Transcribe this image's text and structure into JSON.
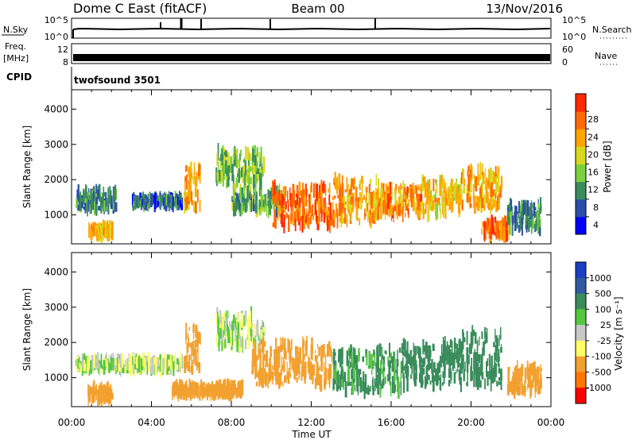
{
  "header": {
    "station": "Dome C East (fitACF)",
    "beam": "Beam 00",
    "date": "13/Nov/2016"
  },
  "noise_panel": {
    "left_label": "N.Sky",
    "left_ticks": [
      "10^5",
      "10^0"
    ],
    "right_label": "N.Search",
    "right_ticks": [
      "10^5",
      "10^0"
    ]
  },
  "freq_panel": {
    "left_label_1": "Freq.",
    "left_label_2": "[MHz]",
    "left_ticks": [
      "12",
      "8"
    ],
    "right_label": "Nave",
    "right_ticks": [
      "60",
      "0"
    ]
  },
  "cpid": {
    "label": "CPID",
    "value": "twofsound 3501"
  },
  "colors": {
    "power": [
      "#0000ff",
      "#2b4ea8",
      "#3a8c5c",
      "#7bd13d",
      "#d8d81f",
      "#ffa500",
      "#ff6a00",
      "#ff2a00"
    ],
    "velocity": [
      "#ff0000",
      "#ff7700",
      "#f2a130",
      "#ffff66",
      "#c8c8c8",
      "#55c840",
      "#3a8c5c",
      "#2f5aa0",
      "#1a3fc4"
    ]
  },
  "chart_data": [
    {
      "type": "heatmap",
      "panel": "power",
      "ylabel": "Slant Range [km]",
      "ylim": [
        180,
        4550
      ],
      "yticks": [
        "1000",
        "2000",
        "3000",
        "4000"
      ],
      "xlim": [
        0,
        24
      ],
      "colorbar": {
        "label": "Power [dB]",
        "range": [
          0,
          32
        ],
        "ticks": [
          "4",
          "8",
          "12",
          "16",
          "20",
          "24",
          "28"
        ]
      },
      "echo_regions": [
        {
          "t0": 0.2,
          "t1": 2.2,
          "r0": 1150,
          "r1": 1650,
          "p": 10
        },
        {
          "t0": 0.8,
          "t1": 2.0,
          "r0": 450,
          "r1": 650,
          "p": 22
        },
        {
          "t0": 3.0,
          "t1": 5.5,
          "r0": 1300,
          "r1": 1450,
          "p": 8
        },
        {
          "t0": 5.6,
          "t1": 6.4,
          "r0": 1200,
          "r1": 2400,
          "p": 22
        },
        {
          "t0": 7.2,
          "t1": 9.6,
          "r0": 1900,
          "r1": 2800,
          "p": 14
        },
        {
          "t0": 8.0,
          "t1": 10.5,
          "r0": 1100,
          "r1": 1700,
          "p": 12
        },
        {
          "t0": 10.0,
          "t1": 13.0,
          "r0": 700,
          "r1": 1800,
          "p": 26
        },
        {
          "t0": 13.0,
          "t1": 15.5,
          "r0": 800,
          "r1": 2000,
          "p": 22
        },
        {
          "t0": 15.5,
          "t1": 17.5,
          "r0": 1000,
          "r1": 1800,
          "p": 24
        },
        {
          "t0": 17.5,
          "t1": 19.5,
          "r0": 1000,
          "r1": 2000,
          "p": 20
        },
        {
          "t0": 19.5,
          "t1": 21.5,
          "r0": 1200,
          "r1": 2300,
          "p": 22
        },
        {
          "t0": 20.5,
          "t1": 21.8,
          "r0": 400,
          "r1": 800,
          "p": 26
        },
        {
          "t0": 21.8,
          "t1": 23.5,
          "r0": 600,
          "r1": 1300,
          "p": 10
        }
      ]
    },
    {
      "type": "heatmap",
      "panel": "velocity",
      "ylabel": "Slant Range [km]",
      "ylim": [
        180,
        4550
      ],
      "yticks": [
        "1000",
        "2000",
        "3000",
        "4000"
      ],
      "xlabel": "Time UT",
      "xlim": [
        0,
        24
      ],
      "xticks": [
        "00:00",
        "04:00",
        "08:00",
        "12:00",
        "16:00",
        "20:00",
        "00:00"
      ],
      "colorbar": {
        "label": "Velocity [m s⁻¹]",
        "ticks": [
          "-1000",
          "-500",
          "-100",
          "-25",
          "25",
          "100",
          "500",
          "1000"
        ]
      },
      "echo_regions": [
        {
          "t0": 0.2,
          "t1": 5.5,
          "r0": 1250,
          "r1": 1500,
          "v": 0
        },
        {
          "t0": 0.8,
          "t1": 2.0,
          "r0": 400,
          "r1": 700,
          "v": -300
        },
        {
          "t0": 5.6,
          "t1": 6.4,
          "r0": 1200,
          "r1": 2400,
          "v": -300
        },
        {
          "t0": 5.0,
          "t1": 8.5,
          "r0": 550,
          "r1": 750,
          "v": -300
        },
        {
          "t0": 7.2,
          "t1": 9.6,
          "r0": 1900,
          "r1": 2800,
          "v": 0
        },
        {
          "t0": 9.0,
          "t1": 13.0,
          "r0": 800,
          "r1": 2000,
          "v": -300
        },
        {
          "t0": 13.0,
          "t1": 16.5,
          "r0": 600,
          "r1": 1800,
          "v": 150
        },
        {
          "t0": 16.5,
          "t1": 19.5,
          "r0": 800,
          "r1": 2000,
          "v": 300
        },
        {
          "t0": 19.5,
          "t1": 21.5,
          "r0": 800,
          "r1": 2300,
          "v": 200
        },
        {
          "t0": 21.8,
          "t1": 23.5,
          "r0": 600,
          "r1": 1300,
          "v": -300
        }
      ]
    }
  ]
}
